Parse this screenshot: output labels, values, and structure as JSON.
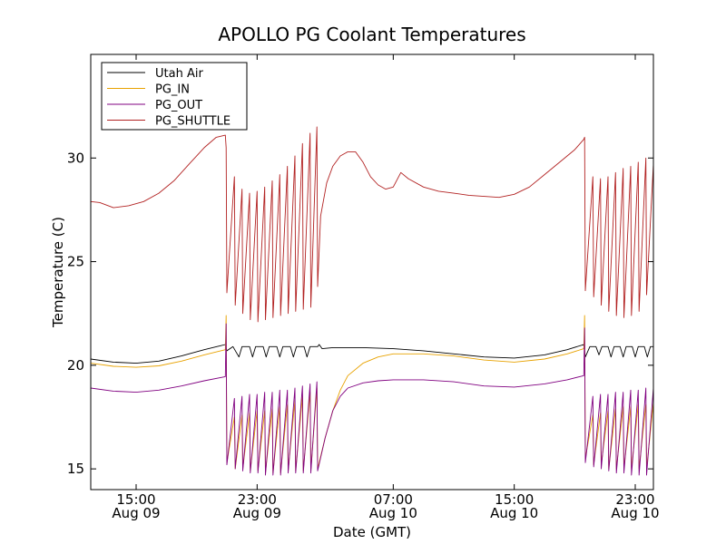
{
  "chart_data": {
    "type": "line",
    "title": "APOLLO PG Coolant Temperatures",
    "xlabel": "Date (GMT)",
    "ylabel": "Temperature (C)",
    "x_unit": "hours since 2010-08-09 11:00 GMT",
    "xlim": [
      0,
      37.2
    ],
    "ylim": [
      14,
      35
    ],
    "y_ticks": [
      15,
      20,
      25,
      30
    ],
    "x_ticks": [
      {
        "x": 3,
        "line1": "15:00",
        "line2": "Aug 09"
      },
      {
        "x": 11,
        "line1": "23:00",
        "line2": "Aug 09"
      },
      {
        "x": 20,
        "line1": "07:00",
        "line2": "Aug 10"
      },
      {
        "x": 28,
        "line1": "15:00",
        "line2": "Aug 10"
      },
      {
        "x": 36,
        "line1": "23:00",
        "line2": "Aug 10"
      }
    ],
    "grid": false,
    "legend_position": "top-left",
    "series": [
      {
        "name": "Utah Air",
        "color": "#000000",
        "points": [
          [
            0,
            20.3
          ],
          [
            1.5,
            20.15
          ],
          [
            3,
            20.1
          ],
          [
            4.5,
            20.2
          ],
          [
            6,
            20.45
          ],
          [
            7.5,
            20.75
          ],
          [
            8.9,
            21.0
          ],
          [
            9.0,
            20.7
          ],
          [
            9.4,
            20.9
          ],
          [
            9.8,
            20.4
          ],
          [
            10.0,
            20.9
          ],
          [
            10.5,
            20.9
          ],
          [
            10.7,
            20.4
          ],
          [
            10.9,
            20.9
          ],
          [
            11.4,
            20.9
          ],
          [
            11.6,
            20.4
          ],
          [
            11.8,
            20.9
          ],
          [
            12.3,
            20.9
          ],
          [
            12.5,
            20.4
          ],
          [
            12.7,
            20.9
          ],
          [
            13.2,
            20.9
          ],
          [
            13.4,
            20.4
          ],
          [
            13.6,
            20.9
          ],
          [
            14.1,
            20.9
          ],
          [
            14.3,
            20.4
          ],
          [
            14.5,
            20.9
          ],
          [
            15.0,
            20.9
          ],
          [
            15.1,
            21.0
          ],
          [
            15.3,
            20.8
          ],
          [
            16,
            20.85
          ],
          [
            18,
            20.85
          ],
          [
            20,
            20.8
          ],
          [
            22,
            20.7
          ],
          [
            24,
            20.55
          ],
          [
            26,
            20.4
          ],
          [
            28,
            20.35
          ],
          [
            30,
            20.5
          ],
          [
            31.5,
            20.75
          ],
          [
            32.6,
            21.0
          ],
          [
            32.7,
            20.4
          ],
          [
            33.0,
            20.9
          ],
          [
            33.4,
            20.9
          ],
          [
            33.6,
            20.5
          ],
          [
            33.8,
            20.9
          ],
          [
            34.2,
            20.9
          ],
          [
            34.4,
            20.4
          ],
          [
            34.6,
            20.9
          ],
          [
            35.0,
            20.9
          ],
          [
            35.2,
            20.4
          ],
          [
            35.4,
            20.9
          ],
          [
            35.8,
            20.9
          ],
          [
            36.0,
            20.4
          ],
          [
            36.2,
            20.9
          ],
          [
            36.6,
            20.9
          ],
          [
            36.8,
            20.4
          ],
          [
            37.0,
            20.9
          ],
          [
            37.2,
            20.9
          ]
        ]
      },
      {
        "name": "PG_IN",
        "color": "#e8a200",
        "points": [
          [
            0,
            20.1
          ],
          [
            1.5,
            19.95
          ],
          [
            3,
            19.9
          ],
          [
            4.5,
            19.97
          ],
          [
            6,
            20.2
          ],
          [
            7.5,
            20.5
          ],
          [
            8.9,
            20.75
          ],
          [
            8.95,
            22.4
          ],
          [
            9.0,
            15.3
          ],
          [
            9.5,
            17.5
          ],
          [
            9.55,
            15.0
          ],
          [
            10.0,
            17.6
          ],
          [
            10.05,
            15.0
          ],
          [
            10.5,
            17.7
          ],
          [
            10.55,
            14.9
          ],
          [
            11.0,
            17.8
          ],
          [
            11.05,
            14.9
          ],
          [
            11.5,
            17.8
          ],
          [
            11.55,
            14.8
          ],
          [
            12.0,
            17.9
          ],
          [
            12.05,
            14.8
          ],
          [
            12.5,
            18.0
          ],
          [
            12.55,
            14.8
          ],
          [
            13.0,
            18.1
          ],
          [
            13.05,
            14.9
          ],
          [
            13.5,
            18.3
          ],
          [
            13.55,
            14.9
          ],
          [
            14.0,
            18.5
          ],
          [
            14.05,
            14.9
          ],
          [
            14.5,
            18.7
          ],
          [
            14.55,
            14.9
          ],
          [
            14.95,
            18.9
          ],
          [
            15.0,
            15.0
          ],
          [
            15.5,
            16.5
          ],
          [
            16.0,
            17.8
          ],
          [
            16.5,
            18.8
          ],
          [
            17.0,
            19.5
          ],
          [
            18.0,
            20.1
          ],
          [
            19.0,
            20.4
          ],
          [
            20.0,
            20.55
          ],
          [
            22.0,
            20.55
          ],
          [
            24.0,
            20.45
          ],
          [
            26.0,
            20.25
          ],
          [
            28.0,
            20.15
          ],
          [
            30.0,
            20.3
          ],
          [
            31.5,
            20.55
          ],
          [
            32.6,
            20.8
          ],
          [
            32.65,
            22.4
          ],
          [
            32.7,
            15.5
          ],
          [
            33.2,
            17.6
          ],
          [
            33.25,
            15.2
          ],
          [
            33.7,
            17.7
          ],
          [
            33.75,
            15.2
          ],
          [
            34.2,
            17.8
          ],
          [
            34.25,
            15.0
          ],
          [
            34.7,
            17.9
          ],
          [
            34.75,
            15.0
          ],
          [
            35.2,
            18.0
          ],
          [
            35.25,
            15.0
          ],
          [
            35.7,
            18.0
          ],
          [
            35.75,
            15.0
          ],
          [
            36.2,
            18.1
          ],
          [
            36.25,
            15.0
          ],
          [
            36.7,
            18.1
          ],
          [
            36.75,
            15.0
          ],
          [
            37.2,
            18.2
          ]
        ]
      },
      {
        "name": "PG_OUT",
        "color": "#800080",
        "points": [
          [
            0,
            18.9
          ],
          [
            1.5,
            18.75
          ],
          [
            3,
            18.7
          ],
          [
            4.5,
            18.8
          ],
          [
            6,
            19.0
          ],
          [
            7.5,
            19.25
          ],
          [
            8.9,
            19.45
          ],
          [
            8.95,
            22.0
          ],
          [
            9.0,
            15.2
          ],
          [
            9.5,
            18.4
          ],
          [
            9.55,
            15.0
          ],
          [
            10.0,
            18.5
          ],
          [
            10.05,
            14.9
          ],
          [
            10.5,
            18.6
          ],
          [
            10.55,
            14.8
          ],
          [
            11.0,
            18.6
          ],
          [
            11.05,
            14.8
          ],
          [
            11.5,
            18.7
          ],
          [
            11.55,
            14.7
          ],
          [
            12.0,
            18.7
          ],
          [
            12.05,
            14.7
          ],
          [
            12.5,
            18.8
          ],
          [
            12.55,
            14.7
          ],
          [
            13.0,
            18.8
          ],
          [
            13.05,
            14.8
          ],
          [
            13.5,
            18.9
          ],
          [
            13.55,
            14.8
          ],
          [
            14.0,
            19.0
          ],
          [
            14.05,
            14.8
          ],
          [
            14.5,
            19.1
          ],
          [
            14.55,
            14.8
          ],
          [
            14.95,
            19.2
          ],
          [
            15.0,
            14.9
          ],
          [
            15.5,
            16.5
          ],
          [
            16.0,
            17.8
          ],
          [
            16.5,
            18.5
          ],
          [
            17.0,
            18.9
          ],
          [
            18.0,
            19.15
          ],
          [
            19.0,
            19.25
          ],
          [
            20.0,
            19.3
          ],
          [
            22.0,
            19.3
          ],
          [
            24.0,
            19.2
          ],
          [
            26.0,
            19.0
          ],
          [
            28.0,
            18.95
          ],
          [
            30.0,
            19.1
          ],
          [
            31.5,
            19.3
          ],
          [
            32.6,
            19.5
          ],
          [
            32.65,
            21.8
          ],
          [
            32.7,
            15.3
          ],
          [
            33.2,
            18.5
          ],
          [
            33.25,
            15.1
          ],
          [
            33.7,
            18.6
          ],
          [
            33.75,
            15.0
          ],
          [
            34.2,
            18.6
          ],
          [
            34.25,
            14.9
          ],
          [
            34.7,
            18.7
          ],
          [
            34.75,
            14.8
          ],
          [
            35.2,
            18.7
          ],
          [
            35.25,
            14.8
          ],
          [
            35.7,
            18.8
          ],
          [
            35.75,
            14.7
          ],
          [
            36.2,
            18.8
          ],
          [
            36.25,
            14.7
          ],
          [
            36.7,
            18.9
          ],
          [
            36.75,
            14.7
          ],
          [
            37.2,
            18.9
          ]
        ]
      },
      {
        "name": "PG_SHUTTLE",
        "color": "#b22222",
        "points": [
          [
            0,
            27.9
          ],
          [
            0.6,
            27.85
          ],
          [
            1.5,
            27.6
          ],
          [
            2.5,
            27.7
          ],
          [
            3.5,
            27.9
          ],
          [
            4.5,
            28.3
          ],
          [
            5.5,
            28.9
          ],
          [
            6.5,
            29.7
          ],
          [
            7.5,
            30.5
          ],
          [
            8.3,
            31.0
          ],
          [
            8.9,
            31.1
          ],
          [
            8.95,
            30.5
          ],
          [
            9.0,
            23.5
          ],
          [
            9.5,
            29.1
          ],
          [
            9.55,
            22.9
          ],
          [
            10.0,
            28.5
          ],
          [
            10.05,
            22.5
          ],
          [
            10.5,
            28.3
          ],
          [
            10.55,
            22.2
          ],
          [
            11.0,
            28.4
          ],
          [
            11.05,
            22.1
          ],
          [
            11.5,
            28.6
          ],
          [
            11.55,
            22.2
          ],
          [
            12.0,
            28.9
          ],
          [
            12.05,
            22.3
          ],
          [
            12.5,
            29.2
          ],
          [
            12.55,
            22.4
          ],
          [
            13.0,
            29.6
          ],
          [
            13.05,
            22.5
          ],
          [
            13.5,
            30.1
          ],
          [
            13.55,
            22.6
          ],
          [
            14.0,
            30.7
          ],
          [
            14.05,
            22.7
          ],
          [
            14.5,
            31.2
          ],
          [
            14.55,
            22.8
          ],
          [
            14.95,
            31.5
          ],
          [
            15.0,
            23.8
          ],
          [
            15.2,
            27.2
          ],
          [
            15.6,
            28.8
          ],
          [
            16.0,
            29.6
          ],
          [
            16.5,
            30.1
          ],
          [
            17.0,
            30.3
          ],
          [
            17.5,
            30.3
          ],
          [
            18.0,
            29.8
          ],
          [
            18.5,
            29.1
          ],
          [
            19.0,
            28.7
          ],
          [
            19.5,
            28.5
          ],
          [
            20.0,
            28.6
          ],
          [
            20.5,
            29.3
          ],
          [
            21.0,
            29.0
          ],
          [
            22.0,
            28.6
          ],
          [
            23.0,
            28.4
          ],
          [
            24.0,
            28.3
          ],
          [
            25.0,
            28.2
          ],
          [
            26.0,
            28.15
          ],
          [
            27.0,
            28.1
          ],
          [
            28.0,
            28.25
          ],
          [
            29.0,
            28.6
          ],
          [
            30.0,
            29.2
          ],
          [
            31.0,
            29.8
          ],
          [
            32.0,
            30.4
          ],
          [
            32.6,
            30.9
          ],
          [
            32.65,
            31.0
          ],
          [
            32.7,
            23.6
          ],
          [
            33.2,
            29.1
          ],
          [
            33.25,
            23.3
          ],
          [
            33.7,
            29.0
          ],
          [
            33.75,
            22.9
          ],
          [
            34.2,
            29.1
          ],
          [
            34.25,
            22.6
          ],
          [
            34.7,
            29.3
          ],
          [
            34.75,
            22.4
          ],
          [
            35.2,
            29.5
          ],
          [
            35.25,
            22.3
          ],
          [
            35.7,
            29.6
          ],
          [
            35.75,
            22.4
          ],
          [
            36.2,
            29.8
          ],
          [
            36.25,
            22.6
          ],
          [
            36.7,
            30.0
          ],
          [
            36.75,
            23.4
          ],
          [
            37.2,
            29.7
          ]
        ]
      }
    ]
  }
}
